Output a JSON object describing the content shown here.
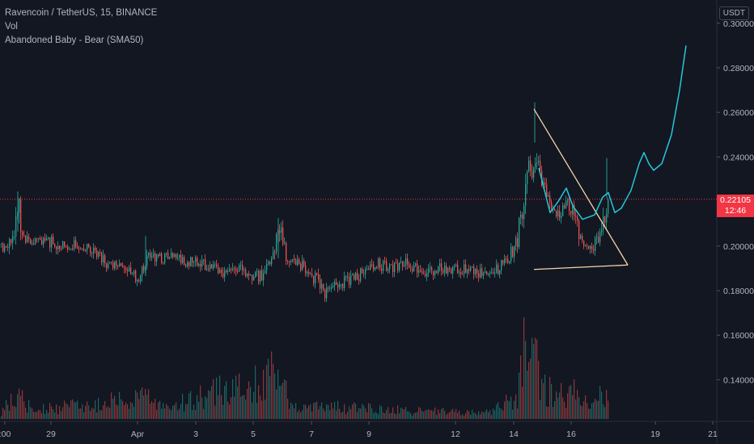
{
  "legend": {
    "symbol": "Ravencoin / TetherUS, 15, BINANCE",
    "volume": "Vol",
    "indicator": "Abandoned Baby - Bear (SMA50)"
  },
  "currency": "USDT",
  "price_tag": {
    "price": "0.22105",
    "countdown": "12:46"
  },
  "colors": {
    "background": "#131722",
    "up": "#26a69a",
    "down": "#ef5350",
    "drawing": "#f5d6a8",
    "projection": "#26c6da",
    "price_line": "#f23645"
  },
  "chart_data": {
    "type": "candlestick",
    "y_axis": {
      "range": [
        0.12,
        0.305
      ],
      "ticks": [
        "0.30000",
        "0.28000",
        "0.26000",
        "0.24000",
        "0.20000",
        "0.18000",
        "0.16000",
        "0.14000"
      ]
    },
    "x_axis": {
      "ticks": [
        ":00",
        "29",
        "Apr",
        "3",
        "5",
        "7",
        "9",
        "12",
        "14",
        "16",
        "19",
        "21"
      ]
    },
    "last_price": 0.22105,
    "price_path": [
      [
        0,
        0.201
      ],
      [
        9,
        0.199
      ],
      [
        18,
        0.207
      ],
      [
        22,
        0.218
      ],
      [
        26,
        0.205
      ],
      [
        40,
        0.201
      ],
      [
        60,
        0.202
      ],
      [
        80,
        0.2
      ],
      [
        100,
        0.201
      ],
      [
        115,
        0.199
      ],
      [
        130,
        0.193
      ],
      [
        145,
        0.19
      ],
      [
        160,
        0.188
      ],
      [
        170,
        0.186
      ],
      [
        178,
        0.193
      ],
      [
        185,
        0.196
      ],
      [
        200,
        0.195
      ],
      [
        220,
        0.194
      ],
      [
        240,
        0.193
      ],
      [
        260,
        0.19
      ],
      [
        275,
        0.187
      ],
      [
        290,
        0.19
      ],
      [
        305,
        0.188
      ],
      [
        320,
        0.186
      ],
      [
        330,
        0.19
      ],
      [
        340,
        0.198
      ],
      [
        345,
        0.21
      ],
      [
        352,
        0.196
      ],
      [
        365,
        0.193
      ],
      [
        375,
        0.19
      ],
      [
        390,
        0.185
      ],
      [
        400,
        0.179
      ],
      [
        410,
        0.181
      ],
      [
        420,
        0.183
      ],
      [
        440,
        0.186
      ],
      [
        455,
        0.19
      ],
      [
        465,
        0.192
      ],
      [
        480,
        0.19
      ],
      [
        500,
        0.192
      ],
      [
        515,
        0.19
      ],
      [
        530,
        0.188
      ],
      [
        545,
        0.19
      ],
      [
        560,
        0.189
      ],
      [
        575,
        0.19
      ],
      [
        590,
        0.188
      ],
      [
        605,
        0.188
      ],
      [
        615,
        0.19
      ],
      [
        625,
        0.193
      ],
      [
        632,
        0.197
      ],
      [
        638,
        0.2
      ],
      [
        643,
        0.213
      ],
      [
        648,
        0.22
      ],
      [
        653,
        0.235
      ],
      [
        658,
        0.228
      ],
      [
        662,
        0.24
      ],
      [
        666,
        0.232
      ],
      [
        672,
        0.225
      ],
      [
        678,
        0.22
      ],
      [
        684,
        0.215
      ],
      [
        690,
        0.215
      ],
      [
        696,
        0.218
      ],
      [
        702,
        0.22
      ],
      [
        708,
        0.215
      ],
      [
        714,
        0.208
      ],
      [
        720,
        0.2
      ],
      [
        726,
        0.198
      ],
      [
        732,
        0.2
      ],
      [
        738,
        0.203
      ],
      [
        744,
        0.208
      ],
      [
        748,
        0.215
      ],
      [
        752,
        0.222
      ]
    ],
    "volume_path": [
      [
        0,
        0.03
      ],
      [
        22,
        0.12
      ],
      [
        40,
        0.04
      ],
      [
        180,
        0.1
      ],
      [
        200,
        0.05
      ],
      [
        345,
        0.22
      ],
      [
        360,
        0.05
      ],
      [
        400,
        0.06
      ],
      [
        500,
        0.04
      ],
      [
        600,
        0.03
      ],
      [
        640,
        0.1
      ],
      [
        646,
        0.42
      ],
      [
        652,
        0.2
      ],
      [
        660,
        0.35
      ],
      [
        666,
        0.15
      ],
      [
        700,
        0.1
      ],
      [
        710,
        0.16
      ],
      [
        730,
        0.08
      ],
      [
        752,
        0.14
      ]
    ],
    "annotations": {
      "triangle": {
        "apex": [
          660,
          0.2615
        ],
        "right": [
          776,
          0.1915
        ],
        "base_left": [
          660,
          0.1895
        ]
      },
      "projection": [
        [
          666,
          0.235
        ],
        [
          680,
          0.215
        ],
        [
          690,
          0.22
        ],
        [
          700,
          0.226
        ],
        [
          708,
          0.218
        ],
        [
          720,
          0.212
        ],
        [
          735,
          0.214
        ],
        [
          745,
          0.222
        ],
        [
          752,
          0.224
        ],
        [
          760,
          0.215
        ],
        [
          768,
          0.217
        ],
        [
          780,
          0.225
        ],
        [
          790,
          0.237
        ],
        [
          796,
          0.242
        ],
        [
          802,
          0.237
        ],
        [
          808,
          0.234
        ],
        [
          818,
          0.237
        ],
        [
          830,
          0.25
        ],
        [
          840,
          0.27
        ],
        [
          848,
          0.29
        ]
      ]
    }
  }
}
